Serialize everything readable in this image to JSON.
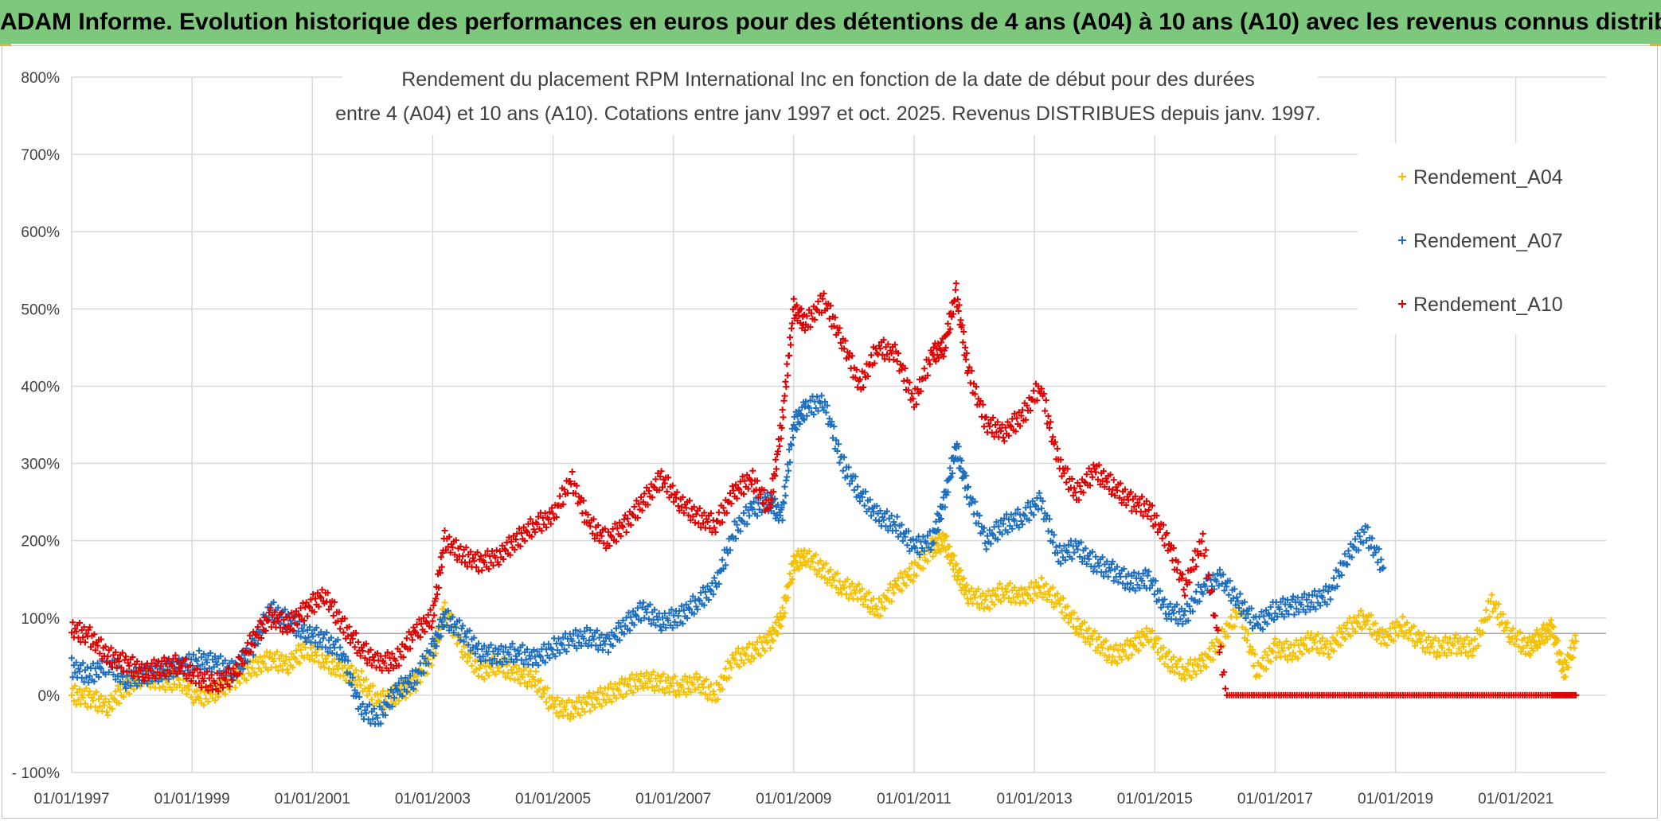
{
  "banner": {
    "title": "ADAM Informe. Evolution historique des performances en euros pour des détentions de 4 ans (A04) à 10 ans (A10) avec les revenus connus distribués"
  },
  "chart_data": {
    "type": "scatter",
    "title_line1": "Rendement du placement RPM International Inc en fonction de la date de début pour des durées",
    "title_line2": "entre 4 (A04) et 10 ans (A10). Cotations entre janv 1997 et oct. 2025. Revenus DISTRIBUES depuis janv. 1997.",
    "xlabel": "",
    "ylabel": "",
    "xlim": [
      1997.0,
      2022.5
    ],
    "ylim": [
      -100,
      800
    ],
    "y_ticks": [
      -100,
      0,
      100,
      200,
      300,
      400,
      500,
      600,
      700,
      800
    ],
    "y_tick_labels": [
      "- 100%",
      "0%",
      "100%",
      "200%",
      "300%",
      "400%",
      "500%",
      "600%",
      "700%",
      "800%"
    ],
    "x_ticks": [
      1997,
      1999,
      2001,
      2003,
      2005,
      2007,
      2009,
      2011,
      2013,
      2015,
      2017,
      2019,
      2021
    ],
    "x_tick_labels": [
      "01/01/1997",
      "01/01/1999",
      "01/01/2001",
      "01/01/2003",
      "01/01/2005",
      "01/01/2007",
      "01/01/2009",
      "01/01/2011",
      "01/01/2013",
      "01/01/2015",
      "01/01/2017",
      "01/01/2019",
      "01/01/2021"
    ],
    "reference_line": 80,
    "legend_position": "top-right",
    "series": [
      {
        "name": "Rendement_A04",
        "color": "#f5c000",
        "marker": "+",
        "x": [
          1997.0,
          1997.3,
          1997.6,
          1997.9,
          1998.2,
          1998.5,
          1998.8,
          1999.1,
          1999.4,
          1999.7,
          2000.0,
          2000.3,
          2000.6,
          2000.9,
          2001.2,
          2001.5,
          2001.8,
          2002.1,
          2002.4,
          2002.7,
          2003.0,
          2003.2,
          2003.5,
          2003.8,
          2004.1,
          2004.4,
          2004.7,
          2005.0,
          2005.3,
          2005.6,
          2005.9,
          2006.2,
          2006.5,
          2006.8,
          2007.1,
          2007.4,
          2007.7,
          2008.0,
          2008.3,
          2008.6,
          2008.8,
          2009.0,
          2009.2,
          2009.5,
          2009.8,
          2010.1,
          2010.4,
          2010.7,
          2011.0,
          2011.3,
          2011.5,
          2011.7,
          2011.9,
          2012.2,
          2012.5,
          2012.8,
          2013.1,
          2013.4,
          2013.7,
          2014.0,
          2014.3,
          2014.6,
          2014.9,
          2015.2,
          2015.5,
          2015.8,
          2016.1,
          2016.4,
          2016.7,
          2017.0,
          2017.3,
          2017.6,
          2017.9,
          2018.2,
          2018.5,
          2018.8,
          2019.1,
          2019.4,
          2019.7,
          2020.0,
          2020.3,
          2020.6,
          2020.9,
          2021.2,
          2021.4,
          2021.6,
          2021.8,
          2022.0
        ],
        "values": [
          0,
          -5,
          -15,
          10,
          25,
          15,
          20,
          -5,
          5,
          20,
          35,
          45,
          40,
          60,
          45,
          30,
          20,
          -10,
          0,
          15,
          50,
          110,
          60,
          30,
          40,
          25,
          20,
          -15,
          -20,
          -10,
          0,
          10,
          20,
          15,
          10,
          15,
          0,
          45,
          55,
          70,
          100,
          170,
          180,
          160,
          140,
          130,
          110,
          140,
          160,
          190,
          200,
          160,
          130,
          120,
          135,
          125,
          140,
          120,
          90,
          70,
          50,
          60,
          80,
          45,
          30,
          40,
          70,
          110,
          30,
          60,
          55,
          70,
          60,
          85,
          100,
          70,
          90,
          70,
          60,
          65,
          60,
          120,
          80,
          60,
          75,
          85,
          30,
          70
        ]
      },
      {
        "name": "Rendement_A07",
        "color": "#1f6fbf",
        "marker": "+",
        "x": [
          1997.0,
          1997.3,
          1997.6,
          1997.9,
          1998.2,
          1998.5,
          1998.8,
          1999.1,
          1999.4,
          1999.7,
          2000.0,
          2000.3,
          2000.6,
          2000.9,
          2001.2,
          2001.5,
          2001.8,
          2002.1,
          2002.4,
          2002.7,
          2003.0,
          2003.2,
          2003.5,
          2003.8,
          2004.1,
          2004.4,
          2004.7,
          2005.0,
          2005.3,
          2005.6,
          2005.9,
          2006.2,
          2006.5,
          2006.8,
          2007.1,
          2007.4,
          2007.7,
          2008.0,
          2008.3,
          2008.6,
          2008.8,
          2009.0,
          2009.2,
          2009.5,
          2009.8,
          2010.1,
          2010.4,
          2010.7,
          2011.0,
          2011.3,
          2011.5,
          2011.7,
          2011.9,
          2012.2,
          2012.5,
          2012.8,
          2013.1,
          2013.4,
          2013.7,
          2014.0,
          2014.3,
          2014.6,
          2014.9,
          2015.2,
          2015.5,
          2015.8,
          2016.1,
          2016.4,
          2016.7,
          2017.0,
          2017.3,
          2017.6,
          2017.9,
          2018.2,
          2018.5,
          2018.8
        ],
        "values": [
          35,
          25,
          40,
          20,
          25,
          30,
          35,
          45,
          40,
          30,
          60,
          110,
          95,
          80,
          70,
          55,
          -20,
          -30,
          5,
          20,
          60,
          100,
          80,
          55,
          50,
          55,
          45,
          60,
          70,
          75,
          65,
          90,
          110,
          95,
          100,
          120,
          140,
          210,
          240,
          250,
          230,
          350,
          370,
          380,
          300,
          260,
          230,
          220,
          190,
          200,
          250,
          320,
          260,
          200,
          220,
          230,
          250,
          180,
          190,
          170,
          160,
          145,
          150,
          110,
          100,
          140,
          150,
          120,
          90,
          110,
          115,
          120,
          130,
          180,
          210,
          165
        ]
      },
      {
        "name": "Rendement_A10",
        "color": "#e00000",
        "marker": "+",
        "x": [
          1997.0,
          1997.3,
          1997.6,
          1997.9,
          1998.2,
          1998.5,
          1998.8,
          1999.1,
          1999.4,
          1999.7,
          2000.0,
          2000.3,
          2000.6,
          2000.9,
          2001.2,
          2001.5,
          2001.8,
          2002.1,
          2002.4,
          2002.7,
          2003.0,
          2003.2,
          2003.5,
          2003.8,
          2004.1,
          2004.4,
          2004.7,
          2005.0,
          2005.3,
          2005.6,
          2005.9,
          2006.2,
          2006.5,
          2006.8,
          2007.1,
          2007.4,
          2007.7,
          2008.0,
          2008.3,
          2008.6,
          2008.8,
          2009.0,
          2009.2,
          2009.5,
          2009.8,
          2010.1,
          2010.4,
          2010.7,
          2011.0,
          2011.3,
          2011.5,
          2011.7,
          2011.9,
          2012.2,
          2012.5,
          2012.8,
          2013.1,
          2013.4,
          2013.7,
          2014.0,
          2014.3,
          2014.6,
          2014.9,
          2015.2,
          2015.5,
          2015.8,
          2016.2,
          2016.8,
          2017.4,
          2018.0,
          2018.6,
          2019.2,
          2019.8,
          2020.4,
          2021.0,
          2021.6,
          2022.0
        ],
        "values": [
          85,
          75,
          50,
          40,
          30,
          35,
          40,
          20,
          15,
          25,
          70,
          100,
          90,
          110,
          130,
          90,
          60,
          40,
          45,
          80,
          100,
          200,
          180,
          170,
          180,
          200,
          220,
          230,
          280,
          220,
          200,
          220,
          250,
          280,
          250,
          230,
          220,
          260,
          280,
          240,
          350,
          500,
          480,
          510,
          460,
          400,
          450,
          440,
          380,
          440,
          450,
          520,
          420,
          350,
          340,
          360,
          400,
          300,
          260,
          290,
          270,
          250,
          240,
          200,
          140,
          200,
          0,
          0,
          0,
          0,
          0,
          0,
          0,
          0,
          0,
          0,
          0
        ]
      }
    ]
  }
}
